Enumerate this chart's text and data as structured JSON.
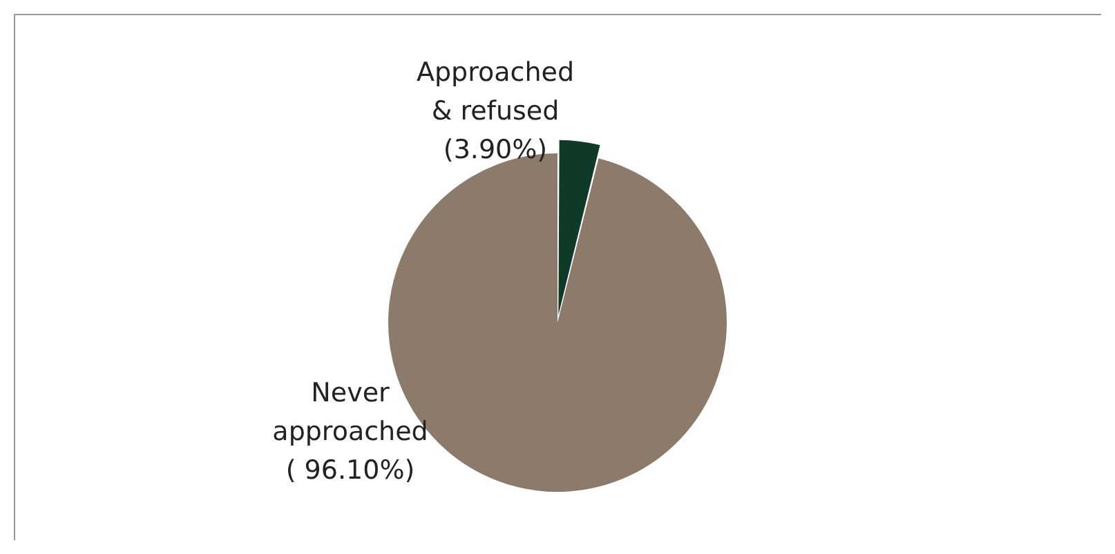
{
  "chart_data": {
    "type": "pie",
    "categories": [
      "Approached & refused",
      "Never approached"
    ],
    "values": [
      3.9,
      96.1
    ],
    "value_labels": [
      "(3.90%)",
      "( 96.10%)"
    ],
    "colors": [
      "#0f3a28",
      "#8c7a6a"
    ],
    "legend": false
  }
}
